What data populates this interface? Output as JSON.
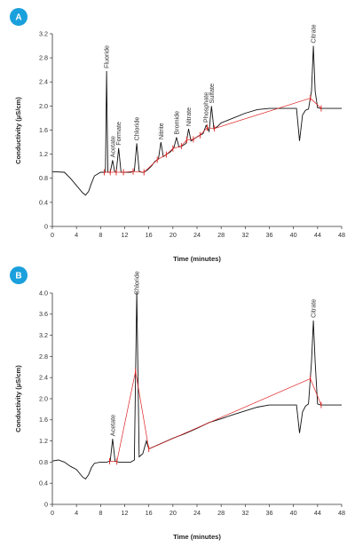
{
  "chart_data": [
    {
      "type": "line",
      "panel": "A",
      "xlabel": "Time (minutes)",
      "ylabel": "Conductivity (µS/cm)",
      "xlim": [
        0,
        48
      ],
      "ylim": [
        0,
        3.2
      ],
      "xticks": [
        "0",
        "4",
        "8",
        "12",
        "16",
        "20",
        "24",
        "28",
        "32",
        "36",
        "40",
        "44",
        "48"
      ],
      "yticks": [
        "0",
        "0.4",
        "0.8",
        "1.2",
        "1.6",
        "2.0",
        "2.4",
        "2.8",
        "3.2"
      ],
      "series": [
        {
          "x": [
            0,
            2,
            3,
            4,
            5,
            5.5,
            6,
            6.5,
            7,
            8,
            8.8,
            9.0,
            9.2,
            9.6,
            10.0,
            10.3,
            10.6,
            11.0,
            11.4,
            11.8,
            12.4,
            13.0,
            13.6,
            14.0,
            14.4,
            14.8,
            15.2,
            15.8,
            16.4,
            17.0,
            17.6,
            18.0,
            18.4,
            19.0,
            19.6,
            20.2,
            20.6,
            21.0,
            21.6,
            22.2,
            22.6,
            23.0,
            23.6,
            24.2,
            25.0,
            25.5,
            26.0,
            26.4,
            26.8,
            27.4,
            28,
            30,
            32,
            34,
            36,
            38,
            40,
            40.5,
            41,
            41.5,
            42,
            42.5,
            43.0,
            43.3,
            43.6,
            44.0,
            44.5,
            45,
            46,
            48
          ],
          "y": [
            0.91,
            0.9,
            0.8,
            0.68,
            0.56,
            0.52,
            0.58,
            0.72,
            0.84,
            0.9,
            0.9,
            2.58,
            0.9,
            0.9,
            1.1,
            0.92,
            0.9,
            1.3,
            0.9,
            0.9,
            0.9,
            0.9,
            0.92,
            1.38,
            0.92,
            0.9,
            0.9,
            0.94,
            1.0,
            1.08,
            1.12,
            1.4,
            1.16,
            1.2,
            1.24,
            1.32,
            1.48,
            1.32,
            1.34,
            1.38,
            1.62,
            1.42,
            1.46,
            1.5,
            1.54,
            1.68,
            1.58,
            2.0,
            1.62,
            1.66,
            1.72,
            1.8,
            1.88,
            1.94,
            1.96,
            1.96,
            1.96,
            1.96,
            1.42,
            1.85,
            1.93,
            1.95,
            2.25,
            3.0,
            2.25,
            1.97,
            1.96,
            1.96,
            1.96,
            1.96
          ],
          "color": "#111111"
        }
      ],
      "peaks": [
        {
          "label": "Fluoride",
          "x": 9.0,
          "y": 2.58
        },
        {
          "label": "Acetate",
          "x": 10.0,
          "y": 1.1
        },
        {
          "label": "Formate",
          "x": 11.0,
          "y": 1.3
        },
        {
          "label": "Chloride",
          "x": 14.0,
          "y": 1.38
        },
        {
          "label": "Nitrite",
          "x": 18.0,
          "y": 1.4
        },
        {
          "label": "Bromide",
          "x": 20.6,
          "y": 1.48
        },
        {
          "label": "Nitrate",
          "x": 22.6,
          "y": 1.62
        },
        {
          "label": "Phosphate",
          "x": 25.5,
          "y": 1.68
        },
        {
          "label": "Sulfate",
          "x": 26.4,
          "y": 2.0
        },
        {
          "label": "Citrate",
          "x": 43.3,
          "y": 3.0
        }
      ],
      "markers_x": [
        8.6,
        9.6,
        10.6,
        11.8,
        13.4,
        15.2,
        17.4,
        18.9,
        20.0,
        21.4,
        22.3,
        23.4,
        24.5,
        25.7,
        26.9,
        42.8,
        44.6
      ],
      "marker_color": "#e02020"
    },
    {
      "type": "line",
      "panel": "B",
      "xlabel": "Time (minutes)",
      "ylabel": "Conductivity (µS/cm)",
      "xlim": [
        0,
        48
      ],
      "ylim": [
        0,
        4.0
      ],
      "xticks": [
        "0",
        "4",
        "8",
        "12",
        "16",
        "20",
        "24",
        "28",
        "32",
        "36",
        "40",
        "44",
        "48"
      ],
      "yticks": [
        "0",
        "0.4",
        "0.8",
        "1.2",
        "1.6",
        "2.0",
        "2.4",
        "2.8",
        "3.2",
        "3.6",
        "4.0"
      ],
      "series": [
        {
          "x": [
            0,
            1,
            2,
            3,
            4,
            5,
            5.5,
            6,
            6.5,
            7,
            8,
            9,
            9.6,
            10.0,
            10.4,
            11,
            12,
            13,
            13.6,
            14.0,
            14.4,
            15.0,
            15.6,
            16,
            18,
            20,
            22,
            24,
            26,
            28,
            30,
            32,
            34,
            36,
            38,
            40,
            40.5,
            41,
            41.5,
            42,
            42.5,
            43.0,
            43.3,
            43.6,
            44.0,
            44.5,
            45,
            46,
            48
          ],
          "y": [
            0.82,
            0.84,
            0.8,
            0.72,
            0.66,
            0.52,
            0.48,
            0.56,
            0.7,
            0.78,
            0.8,
            0.8,
            0.82,
            1.24,
            0.82,
            0.8,
            0.8,
            0.8,
            0.84,
            4.2,
            0.9,
            0.96,
            1.2,
            1.05,
            1.15,
            1.25,
            1.34,
            1.44,
            1.55,
            1.62,
            1.7,
            1.77,
            1.84,
            1.88,
            1.88,
            1.88,
            1.88,
            1.35,
            1.75,
            1.86,
            1.9,
            2.7,
            3.48,
            2.7,
            1.9,
            1.88,
            1.88,
            1.88,
            1.88
          ],
          "color": "#111111"
        }
      ],
      "peaks": [
        {
          "label": "Acetate",
          "x": 10.0,
          "y": 1.24
        },
        {
          "label": "Chloride",
          "x": 14.0,
          "y": 4.2
        },
        {
          "label": "Citrate",
          "x": 43.3,
          "y": 3.48
        }
      ],
      "markers_x": [
        9.5,
        10.7,
        13.8,
        16.0,
        42.8,
        44.6
      ],
      "marker_color": "#e02020"
    }
  ],
  "panels": [
    {
      "badge": "A",
      "badge_color": "#1aa0dc"
    },
    {
      "badge": "B",
      "badge_color": "#1aa0dc"
    }
  ]
}
